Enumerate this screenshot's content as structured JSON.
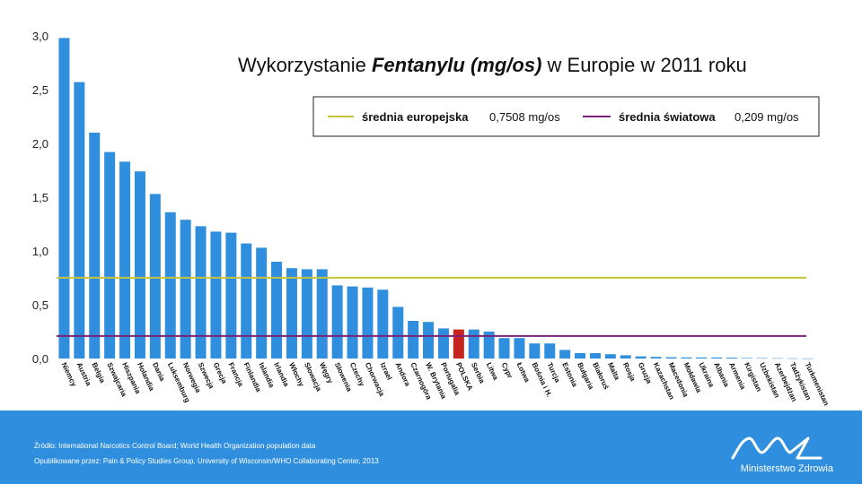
{
  "chart_data": {
    "type": "bar",
    "title_parts": {
      "pre": "Wykorzystanie ",
      "em": "Fentanylu (mg/os)",
      "post": " w Europie w 2011 roku"
    },
    "ylim": [
      0,
      3
    ],
    "yticks": [
      "0,0",
      "0,5",
      "1,0",
      "1,5",
      "2,0",
      "2,5",
      "3,0"
    ],
    "categories": [
      "Niemcy",
      "Austria",
      "Belgia",
      "Szwajcaria",
      "Hiszpania",
      "Holandia",
      "Dania",
      "Luksemburg",
      "Norwegia",
      "Szwecja",
      "Grecja",
      "Francja",
      "Finlandia",
      "Islandia",
      "Irlandia",
      "Włochy",
      "Słowacja",
      "Węgry",
      "Słowenia",
      "Czechy",
      "Chorwacja",
      "Izrael",
      "Andora",
      "Czarnogóra",
      "W. Brytania",
      "Portugalia",
      "POLSKA",
      "Serbia",
      "Litwa",
      "Cypr",
      "Łotwa",
      "Bośnia i H.",
      "Turcja",
      "Estonia",
      "Bułgaria",
      "Białoruś",
      "Malta",
      "Rosja",
      "Gruzja",
      "Kazachstan",
      "Macedonia",
      "Mołdawia",
      "Ukraina",
      "Albania",
      "Armenia",
      "Kirgistan",
      "Uzbekistan",
      "Azerbejdżan",
      "Tadżykistan",
      "Turkmenistan"
    ],
    "values": [
      2.98,
      2.57,
      2.1,
      1.92,
      1.83,
      1.74,
      1.53,
      1.36,
      1.29,
      1.23,
      1.18,
      1.17,
      1.07,
      1.03,
      0.9,
      0.84,
      0.83,
      0.83,
      0.68,
      0.67,
      0.66,
      0.64,
      0.48,
      0.35,
      0.34,
      0.28,
      0.27,
      0.27,
      0.25,
      0.19,
      0.19,
      0.14,
      0.14,
      0.08,
      0.05,
      0.05,
      0.04,
      0.03,
      0.02,
      0.015,
      0.012,
      0.01,
      0.01,
      0.01,
      0.008,
      0.005,
      0.004,
      0.003,
      0.002,
      0.001
    ],
    "highlight": "POLSKA",
    "reference_lines": [
      {
        "name": "średnia europejska",
        "value": 0.7508,
        "label": "0,7508 mg/os",
        "color": "#c8c23a"
      },
      {
        "name": "średnia światowa",
        "value": 0.209,
        "label": "0,209 mg/os",
        "color": "#7a2276"
      }
    ]
  },
  "colors": {
    "bar": "#2f8fde",
    "highlight": "#c8251f",
    "footer": "#2f8fde"
  },
  "footer": {
    "source": "Źródło:  International Narcotics Control Board; World Health Organization population data",
    "published": "Opublikowane przez:  Pain & Policy Studies Group, University of Wisconsin/WHO Collaborating Center, 2013",
    "brand": "Ministerstwo Zdrowia"
  }
}
